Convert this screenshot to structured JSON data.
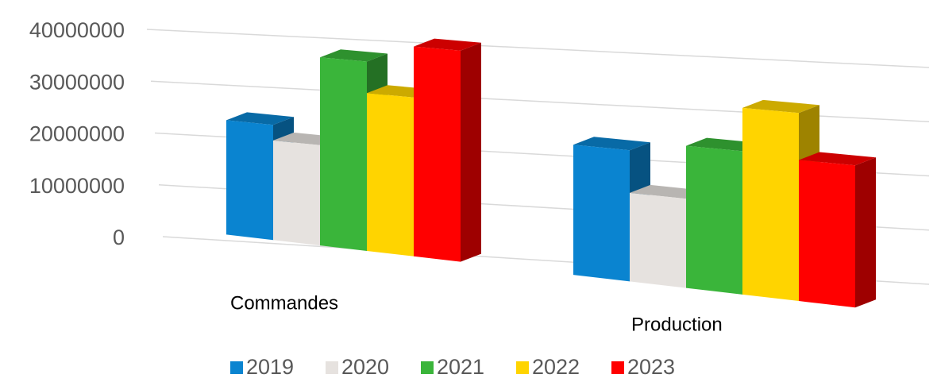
{
  "chart_data": {
    "type": "bar3d",
    "categories": [
      "Commandes",
      "Production"
    ],
    "series": [
      {
        "name": "2019",
        "color": "#0a84d0",
        "values": [
          18500000,
          20000000
        ]
      },
      {
        "name": "2020",
        "color": "#e6e2df",
        "values": [
          16000000,
          13500000
        ]
      },
      {
        "name": "2021",
        "color": "#3ab53a",
        "values": [
          30000000,
          21500000
        ]
      },
      {
        "name": "2022",
        "color": "#ffd400",
        "values": [
          25000000,
          28000000
        ]
      },
      {
        "name": "2023",
        "color": "#ff0000",
        "values": [
          33000000,
          21000000
        ]
      }
    ],
    "ylim": [
      0,
      40000000
    ],
    "yticks": [
      0,
      10000000,
      20000000,
      30000000,
      40000000
    ],
    "grid": true,
    "legend": "bottom"
  }
}
